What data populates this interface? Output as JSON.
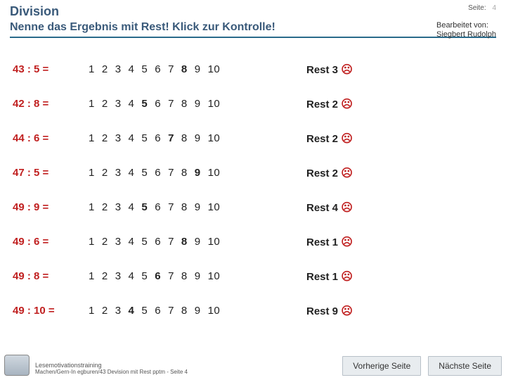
{
  "header": {
    "title": "Division",
    "subtitle": "Nenne das Ergebnis mit Rest! Klick zur Kontrolle!",
    "page_label": "Seite:",
    "page_number": "4",
    "author_label": "Bearbeitet von:",
    "author_name": "Siegbert Rudolph"
  },
  "problems": [
    {
      "expr": "43 : 5 =",
      "answer": 8,
      "rest": "Rest 3"
    },
    {
      "expr": "42 : 8 =",
      "answer": 5,
      "rest": "Rest 2"
    },
    {
      "expr": "44 : 6 =",
      "answer": 7,
      "rest": "Rest 2"
    },
    {
      "expr": "47 : 5 =",
      "answer": 9,
      "rest": "Rest 2"
    },
    {
      "expr": "49 : 9 =",
      "answer": 5,
      "rest": "Rest 4"
    },
    {
      "expr": "49 : 6 =",
      "answer": 8,
      "rest": "Rest 1"
    },
    {
      "expr": "49 : 8 =",
      "answer": 6,
      "rest": "Rest 1"
    },
    {
      "expr": "49 : 10 =",
      "answer": 4,
      "rest": "Rest 9"
    }
  ],
  "numbers": [
    "1",
    "2",
    "3",
    "4",
    "5",
    "6",
    "7",
    "8",
    "9",
    "10"
  ],
  "sad_icon": "☹",
  "footer": {
    "line1": "Lesemotivationstraining",
    "line2": "Machen/Gern-In egburen/43 Devision mit Rest pptm - Seite 4"
  },
  "nav": {
    "prev": "Vorherige Seite",
    "next": "Nächste Seite"
  },
  "colors": {
    "title": "#3a5a7a",
    "problem": "#c02020",
    "border": "#2a6a8a"
  }
}
